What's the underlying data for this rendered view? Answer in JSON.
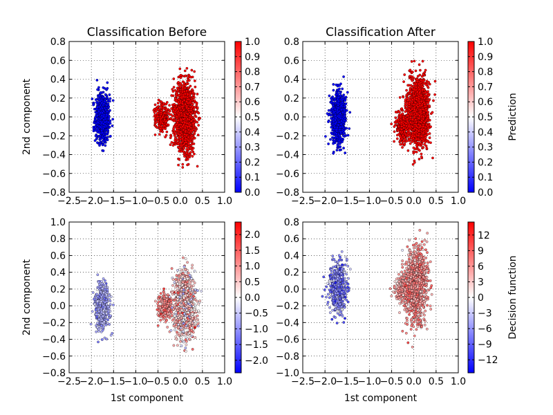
{
  "chart_data": [
    {
      "type": "scatter",
      "title": "Classification Before",
      "xlabel": "",
      "ylabel": "2nd component",
      "xlim": [
        -2.5,
        1.0
      ],
      "ylim": [
        -0.8,
        0.8
      ],
      "xticks": [
        "−2.5",
        "−2.0",
        "−1.5",
        "−1.0",
        "−0.5",
        "0.0",
        "0.5",
        "1.0"
      ],
      "yticks": [
        "−0.8",
        "−0.6",
        "−0.4",
        "−0.2",
        "0.0",
        "0.2",
        "0.4",
        "0.6",
        "0.8"
      ],
      "grid": true,
      "colorbar": {
        "label": "",
        "range": [
          0.0,
          1.0
        ],
        "ticks": [
          {
            "v": 0.0,
            "t": "0.0"
          },
          {
            "v": 0.1,
            "t": "0.1"
          },
          {
            "v": 0.2,
            "t": "0.2"
          },
          {
            "v": 0.3,
            "t": "0.3"
          },
          {
            "v": 0.4,
            "t": "0.4"
          },
          {
            "v": 0.5,
            "t": "0.5"
          },
          {
            "v": 0.6,
            "t": "0.6"
          },
          {
            "v": 0.7,
            "t": "0.7"
          },
          {
            "v": 0.8,
            "t": "0.8"
          },
          {
            "v": 0.9,
            "t": "0.9"
          },
          {
            "v": 1.0,
            "t": "1.0"
          }
        ],
        "colormap": [
          "#0000ff",
          "#ffffff",
          "#ff0000"
        ]
      },
      "clusters": [
        {
          "cx": -1.75,
          "cy": 0.0,
          "sx": 0.08,
          "sy": 0.13,
          "color_value": 0.0,
          "spread": 0.0
        },
        {
          "cx": -0.4,
          "cy": 0.0,
          "sx": 0.08,
          "sy": 0.08,
          "color_value": 1.0,
          "spread": 0.0
        },
        {
          "cx": 0.1,
          "cy": 0.0,
          "sx": 0.12,
          "sy": 0.17,
          "color_value": 1.0,
          "spread": 0.0
        }
      ]
    },
    {
      "type": "scatter",
      "title": "Classification After",
      "xlabel": "",
      "ylabel": "",
      "xlim": [
        -2.5,
        1.0
      ],
      "ylim": [
        -0.8,
        0.8
      ],
      "xticks": [
        "−2.5",
        "−2.0",
        "−1.5",
        "−1.0",
        "−0.5",
        "0.0",
        "0.5",
        "1.0"
      ],
      "yticks": [
        "−0.8",
        "−0.6",
        "−0.4",
        "−0.2",
        "0.0",
        "0.2",
        "0.4",
        "0.6",
        "0.8"
      ],
      "grid": true,
      "colorbar": {
        "label": "Prediction",
        "range": [
          0.0,
          1.0
        ],
        "ticks": [
          {
            "v": 0.0,
            "t": "0.0"
          },
          {
            "v": 0.1,
            "t": "0.1"
          },
          {
            "v": 0.2,
            "t": "0.2"
          },
          {
            "v": 0.3,
            "t": "0.3"
          },
          {
            "v": 0.4,
            "t": "0.4"
          },
          {
            "v": 0.5,
            "t": "0.5"
          },
          {
            "v": 0.6,
            "t": "0.6"
          },
          {
            "v": 0.7,
            "t": "0.7"
          },
          {
            "v": 0.8,
            "t": "0.8"
          },
          {
            "v": 0.9,
            "t": "0.9"
          },
          {
            "v": 1.0,
            "t": "1.0"
          }
        ],
        "colormap": [
          "#0000ff",
          "#ffffff",
          "#ff0000"
        ]
      },
      "clusters": [
        {
          "cx": -1.7,
          "cy": 0.0,
          "sx": 0.08,
          "sy": 0.14,
          "color_value": 0.0,
          "spread": 0.0
        },
        {
          "cx": -0.25,
          "cy": -0.1,
          "sx": 0.08,
          "sy": 0.08,
          "color_value": 1.0,
          "spread": 0.0
        },
        {
          "cx": 0.1,
          "cy": 0.05,
          "sx": 0.12,
          "sy": 0.17,
          "color_value": 1.0,
          "spread": 0.0
        }
      ]
    },
    {
      "type": "scatter",
      "title": "",
      "xlabel": "1st component",
      "ylabel": "2nd component",
      "xlim": [
        -2.5,
        1.0
      ],
      "ylim": [
        -0.8,
        1.0
      ],
      "xticks": [
        "−2.5",
        "−2.0",
        "−1.5",
        "−1.0",
        "−0.5",
        "0.0",
        "0.5",
        "1.0"
      ],
      "yticks": [
        "−0.8",
        "−0.6",
        "−0.4",
        "−0.2",
        "0.0",
        "0.2",
        "0.4",
        "0.6",
        "0.8",
        "1.0"
      ],
      "grid": true,
      "colorbar": {
        "label": "",
        "range": [
          -2.4,
          2.4
        ],
        "ticks": [
          {
            "v": -2.0,
            "t": "−2.0"
          },
          {
            "v": -1.5,
            "t": "−1.5"
          },
          {
            "v": -1.0,
            "t": "−1.0"
          },
          {
            "v": -0.5,
            "t": "−0.5"
          },
          {
            "v": 0.0,
            "t": "0.0"
          },
          {
            "v": 0.5,
            "t": "0.5"
          },
          {
            "v": 1.0,
            "t": "1.0"
          },
          {
            "v": 1.5,
            "t": "1.5"
          },
          {
            "v": 2.0,
            "t": "2.0"
          }
        ],
        "colormap": [
          "#0000ff",
          "#ffffff",
          "#ff0000"
        ]
      },
      "clusters": [
        {
          "cx": -1.75,
          "cy": 0.0,
          "sx": 0.08,
          "sy": 0.14,
          "color_value": -0.8,
          "spread": 0.25
        },
        {
          "cx": -0.35,
          "cy": -0.02,
          "sx": 0.08,
          "sy": 0.08,
          "color_value": 1.1,
          "spread": 0.3
        },
        {
          "cx": 0.1,
          "cy": 0.02,
          "sx": 0.12,
          "sy": 0.18,
          "color_value": 0.5,
          "spread": 0.6
        }
      ]
    },
    {
      "type": "scatter",
      "title": "",
      "xlabel": "1st component",
      "ylabel": "",
      "xlim": [
        -2.5,
        1.0
      ],
      "ylim": [
        -1.0,
        0.8
      ],
      "xticks": [
        "−2.5",
        "−2.0",
        "−1.5",
        "−1.0",
        "−0.5",
        "0.0",
        "0.5",
        "1.0"
      ],
      "yticks": [
        "−1.0",
        "−0.8",
        "−0.6",
        "−0.4",
        "−0.2",
        "0.0",
        "0.2",
        "0.4",
        "0.6",
        "0.8"
      ],
      "grid": true,
      "colorbar": {
        "label": "Decision function",
        "range": [
          -14.5,
          14.5
        ],
        "ticks": [
          {
            "v": -12,
            "t": "−12"
          },
          {
            "v": -9,
            "t": "−9"
          },
          {
            "v": -6,
            "t": "−6"
          },
          {
            "v": -3,
            "t": "−3"
          },
          {
            "v": 0,
            "t": "0"
          },
          {
            "v": 3,
            "t": "3"
          },
          {
            "v": 6,
            "t": "6"
          },
          {
            "v": 9,
            "t": "9"
          },
          {
            "v": 12,
            "t": "12"
          }
        ],
        "colormap": [
          "#0000ff",
          "#ffffff",
          "#ff0000"
        ]
      },
      "clusters": [
        {
          "cx": -1.7,
          "cy": 0.02,
          "sx": 0.09,
          "sy": 0.15,
          "color_value": -7,
          "spread": 2.5
        },
        {
          "cx": -0.25,
          "cy": 0.0,
          "sx": 0.08,
          "sy": 0.08,
          "color_value": 5,
          "spread": 1.5
        },
        {
          "cx": 0.05,
          "cy": 0.05,
          "sx": 0.12,
          "sy": 0.2,
          "color_value": 6,
          "spread": 2.0
        }
      ]
    }
  ]
}
